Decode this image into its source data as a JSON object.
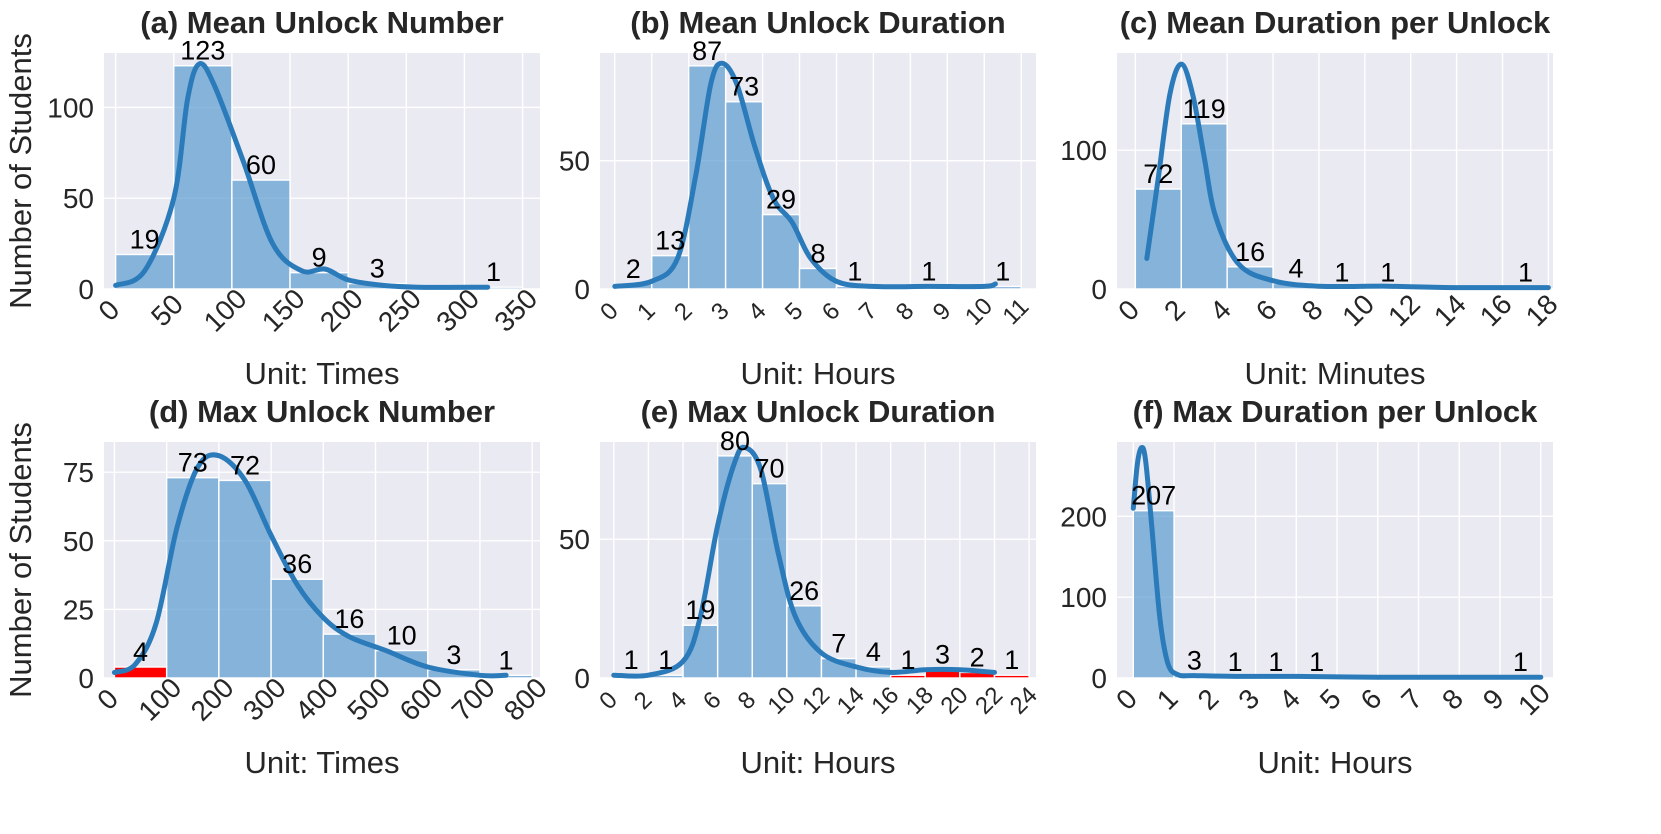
{
  "figure": {
    "ylabel": "Number of Students",
    "bar_color": "#5b9bd0",
    "highlight_color": "#ff0000",
    "kde_color": "#2b7bba",
    "background": "#eaeaf2"
  },
  "chart_data": [
    {
      "id": "a",
      "type": "bar",
      "title": "(a) Mean Unlock Number",
      "xlabel": "Unit: Times",
      "ylabel": "Number of Students",
      "xlim": [
        -10,
        365
      ],
      "ylim": [
        0,
        130
      ],
      "xticks": [
        0,
        50,
        100,
        150,
        200,
        250,
        300,
        350
      ],
      "xtick_labels": [
        "0",
        "50",
        "100",
        "150",
        "200",
        "250",
        "300",
        "350"
      ],
      "xtick_rotation": -45,
      "yticks": [
        0,
        50,
        100
      ],
      "ytick_labels": [
        "0",
        "50",
        "100"
      ],
      "bins": [
        0,
        50,
        100,
        150,
        200,
        250,
        300,
        350
      ],
      "values": [
        19,
        123,
        60,
        9,
        3,
        0,
        1
      ],
      "labels": [
        "19",
        "123",
        "60",
        "9",
        "3",
        "",
        "1"
      ],
      "kde": [
        [
          0,
          2
        ],
        [
          25,
          10
        ],
        [
          50,
          50
        ],
        [
          62,
          105
        ],
        [
          72,
          124
        ],
        [
          85,
          112
        ],
        [
          110,
          70
        ],
        [
          135,
          25
        ],
        [
          160,
          10
        ],
        [
          180,
          11
        ],
        [
          200,
          5
        ],
        [
          230,
          2
        ],
        [
          260,
          1
        ],
        [
          320,
          1
        ]
      ]
    },
    {
      "id": "b",
      "type": "bar",
      "title": "(b) Mean Unlock Duration",
      "xlabel": "Unit: Hours",
      "xlim": [
        -0.4,
        11.4
      ],
      "ylim": [
        0,
        92
      ],
      "xticks": [
        0,
        1,
        2,
        3,
        4,
        5,
        6,
        7,
        8,
        9,
        10,
        11
      ],
      "xtick_labels": [
        "0",
        "1",
        "2",
        "3",
        "4",
        "5",
        "6",
        "7",
        "8",
        "9",
        "10",
        "11"
      ],
      "xtick_rotation": -45,
      "yticks": [
        0,
        50
      ],
      "ytick_labels": [
        "0",
        "50"
      ],
      "bins": [
        1,
        2,
        3,
        4,
        5,
        6,
        7,
        8,
        9,
        10,
        11
      ],
      "values": [
        2,
        13,
        87,
        73,
        29,
        8,
        1,
        0,
        1,
        0,
        1
      ],
      "labels": [
        "2",
        "13",
        "87",
        "73",
        "29",
        "8",
        "1",
        "",
        "1",
        "",
        "1"
      ],
      "bar_positions": [
        [
          0,
          1
        ],
        [
          1,
          2
        ],
        [
          2,
          3
        ],
        [
          3,
          4
        ],
        [
          4,
          5
        ],
        [
          5,
          6
        ],
        [
          6,
          7
        ],
        [
          7,
          8
        ],
        [
          8,
          9
        ],
        [
          9,
          10
        ],
        [
          10,
          11
        ]
      ],
      "kde": [
        [
          0,
          1
        ],
        [
          1,
          3
        ],
        [
          1.7,
          12
        ],
        [
          2.2,
          45
        ],
        [
          2.6,
          80
        ],
        [
          2.9,
          88
        ],
        [
          3.3,
          80
        ],
        [
          3.8,
          55
        ],
        [
          4.3,
          35
        ],
        [
          4.8,
          26
        ],
        [
          5.3,
          12
        ],
        [
          6,
          3
        ],
        [
          7,
          1
        ],
        [
          8.5,
          1
        ],
        [
          10,
          1
        ],
        [
          10.3,
          2
        ]
      ]
    },
    {
      "id": "c",
      "type": "bar",
      "title": "(c) Mean Duration per Unlock",
      "xlabel": "Unit: Minutes",
      "xlim": [
        -0.8,
        18.2
      ],
      "ylim": [
        0,
        170
      ],
      "xticks": [
        0,
        2,
        4,
        6,
        8,
        10,
        12,
        14,
        16,
        18
      ],
      "xtick_labels": [
        "0",
        "2",
        "4",
        "6",
        "8",
        "10",
        "12",
        "14",
        "16",
        "18"
      ],
      "xtick_rotation": -45,
      "yticks": [
        0,
        100
      ],
      "ytick_labels": [
        "0",
        "100"
      ],
      "bar_positions": [
        [
          0,
          2
        ],
        [
          2,
          4
        ],
        [
          4,
          6
        ],
        [
          6,
          8
        ],
        [
          8,
          10
        ],
        [
          10,
          12
        ],
        [
          12,
          14
        ],
        [
          14,
          16
        ],
        [
          16,
          18
        ]
      ],
      "values": [
        72,
        119,
        16,
        4,
        1,
        1,
        0,
        0,
        1
      ],
      "labels": [
        "72",
        "119",
        "16",
        "4",
        "1",
        "1",
        "",
        "",
        "1"
      ],
      "kde": [
        [
          0.5,
          22
        ],
        [
          1,
          80
        ],
        [
          1.5,
          140
        ],
        [
          2,
          162
        ],
        [
          2.5,
          140
        ],
        [
          3,
          95
        ],
        [
          3.5,
          52
        ],
        [
          4.5,
          18
        ],
        [
          6,
          6
        ],
        [
          8,
          2
        ],
        [
          11,
          2
        ],
        [
          14,
          1
        ],
        [
          18,
          1
        ]
      ]
    },
    {
      "id": "d",
      "type": "bar",
      "title": "(d) Max Unlock Number",
      "xlabel": "Unit: Times",
      "ylabel": "Number of Students",
      "xlim": [
        -20,
        815
      ],
      "ylim": [
        0,
        86
      ],
      "xticks": [
        0,
        100,
        200,
        300,
        400,
        500,
        600,
        700,
        800
      ],
      "xtick_labels": [
        "0",
        "100",
        "200",
        "300",
        "400",
        "500",
        "600",
        "700",
        "800"
      ],
      "xtick_rotation": -45,
      "yticks": [
        0,
        25,
        50,
        75
      ],
      "ytick_labels": [
        "0",
        "25",
        "50",
        "75"
      ],
      "bar_positions": [
        [
          0,
          100
        ],
        [
          100,
          200
        ],
        [
          200,
          300
        ],
        [
          300,
          400
        ],
        [
          400,
          500
        ],
        [
          500,
          600
        ],
        [
          600,
          700
        ],
        [
          700,
          800
        ]
      ],
      "values": [
        4,
        73,
        72,
        36,
        16,
        10,
        3,
        1
      ],
      "labels": [
        "4",
        "73",
        "72",
        "36",
        "16",
        "10",
        "3",
        "1"
      ],
      "highlight": [
        0
      ],
      "kde": [
        [
          0,
          2
        ],
        [
          40,
          5
        ],
        [
          80,
          20
        ],
        [
          120,
          55
        ],
        [
          160,
          77
        ],
        [
          200,
          81
        ],
        [
          250,
          72
        ],
        [
          300,
          52
        ],
        [
          350,
          34
        ],
        [
          400,
          22
        ],
        [
          450,
          15
        ],
        [
          520,
          10
        ],
        [
          600,
          4
        ],
        [
          700,
          1
        ],
        [
          750,
          1
        ]
      ]
    },
    {
      "id": "e",
      "type": "bar",
      "title": "(e) Max Unlock Duration",
      "xlabel": "Unit: Hours",
      "xlim": [
        -0.8,
        24.4
      ],
      "ylim": [
        0,
        85
      ],
      "xticks": [
        0,
        2,
        4,
        6,
        8,
        10,
        12,
        14,
        16,
        18,
        20,
        22,
        24
      ],
      "xtick_labels": [
        "0",
        "2",
        "4",
        "6",
        "8",
        "10",
        "12",
        "14",
        "16",
        "18",
        "20",
        "22",
        "24"
      ],
      "xtick_rotation": -45,
      "yticks": [
        0,
        50
      ],
      "ytick_labels": [
        "0",
        "50"
      ],
      "bar_positions": [
        [
          0,
          2
        ],
        [
          2,
          4
        ],
        [
          4,
          6
        ],
        [
          6,
          8
        ],
        [
          8,
          10
        ],
        [
          10,
          12
        ],
        [
          12,
          14
        ],
        [
          14,
          16
        ],
        [
          16,
          18
        ],
        [
          18,
          20
        ],
        [
          20,
          22
        ],
        [
          22,
          24
        ]
      ],
      "values": [
        1,
        1,
        19,
        80,
        70,
        26,
        7,
        4,
        1,
        3,
        2,
        1
      ],
      "labels": [
        "1",
        "1",
        "19",
        "80",
        "70",
        "26",
        "7",
        "4",
        "1",
        "3",
        "2",
        "1"
      ],
      "highlight": [
        8,
        9,
        10,
        11
      ],
      "kde": [
        [
          0,
          1
        ],
        [
          2,
          1
        ],
        [
          4,
          6
        ],
        [
          5,
          22
        ],
        [
          6,
          55
        ],
        [
          7,
          78
        ],
        [
          7.6,
          83
        ],
        [
          8.5,
          75
        ],
        [
          9.5,
          45
        ],
        [
          10.5,
          22
        ],
        [
          12,
          9
        ],
        [
          14,
          4
        ],
        [
          16,
          2
        ],
        [
          18,
          3
        ],
        [
          20,
          3
        ],
        [
          22,
          2
        ]
      ]
    },
    {
      "id": "f",
      "type": "bar",
      "title": "(f) Max Duration per Unlock",
      "xlabel": "Unit: Hours",
      "xlim": [
        -0.4,
        10.3
      ],
      "ylim": [
        0,
        292
      ],
      "xticks": [
        0,
        1,
        2,
        3,
        4,
        5,
        6,
        7,
        8,
        9,
        10
      ],
      "xtick_labels": [
        "0",
        "1",
        "2",
        "3",
        "4",
        "5",
        "6",
        "7",
        "8",
        "9",
        "10"
      ],
      "xtick_rotation": -45,
      "yticks": [
        0,
        100,
        200
      ],
      "ytick_labels": [
        "0",
        "100",
        "200"
      ],
      "bar_positions": [
        [
          0,
          1
        ],
        [
          1,
          2
        ],
        [
          2,
          3
        ],
        [
          3,
          4
        ],
        [
          4,
          5
        ],
        [
          5,
          6
        ],
        [
          6,
          7
        ],
        [
          7,
          8
        ],
        [
          8,
          9
        ],
        [
          9,
          10
        ]
      ],
      "values": [
        207,
        3,
        1,
        1,
        1,
        0,
        0,
        0,
        0,
        1
      ],
      "labels": [
        "207",
        "3",
        "1",
        "1",
        "1",
        "",
        "",
        "",
        "",
        "1"
      ],
      "kde": [
        [
          0,
          210
        ],
        [
          0.1,
          265
        ],
        [
          0.2,
          285
        ],
        [
          0.3,
          270
        ],
        [
          0.45,
          190
        ],
        [
          0.65,
          75
        ],
        [
          0.85,
          18
        ],
        [
          1.1,
          4
        ],
        [
          1.5,
          3
        ],
        [
          2.5,
          2
        ],
        [
          4,
          2
        ],
        [
          6,
          1
        ],
        [
          8,
          1
        ],
        [
          10,
          1
        ]
      ]
    }
  ]
}
